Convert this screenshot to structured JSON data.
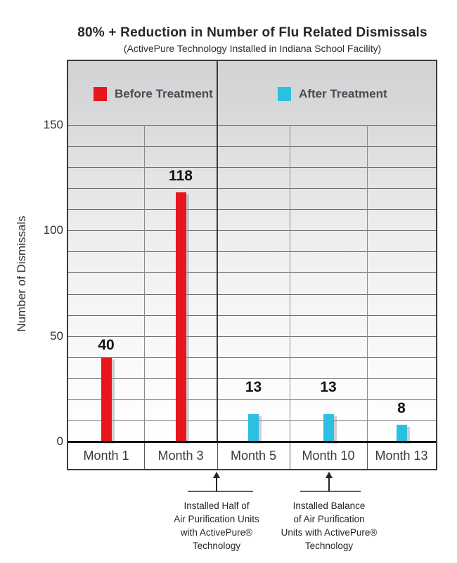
{
  "title": "80% + Reduction in Number of Flu Related Dismissals",
  "subtitle": "(ActivePure Technology Installed in Indiana School Facility)",
  "chart_data": {
    "type": "bar",
    "categories": [
      "Month 1",
      "Month 3",
      "Month 5",
      "Month 10",
      "Month 13"
    ],
    "series": [
      {
        "name": "Before Treatment",
        "color": "#E8151F",
        "values": [
          40,
          118,
          null,
          null,
          null
        ]
      },
      {
        "name": "After Treatment",
        "color": "#2BBFE1",
        "values": [
          null,
          null,
          13,
          13,
          8
        ]
      }
    ],
    "ylabel": "Number of Dismissals",
    "yticks": [
      0,
      50,
      100,
      150
    ],
    "ylim": [
      0,
      180
    ],
    "grid_step": 10,
    "grid": "on",
    "legend_position": "top-band"
  },
  "annotations": [
    {
      "lines": [
        "Installed Half of",
        "Air Purification Units",
        "with ActivePure®",
        "Technology"
      ]
    },
    {
      "lines": [
        "Installed Balance",
        "of Air Purification",
        "Units with ActivePure®",
        "Technology"
      ]
    }
  ]
}
